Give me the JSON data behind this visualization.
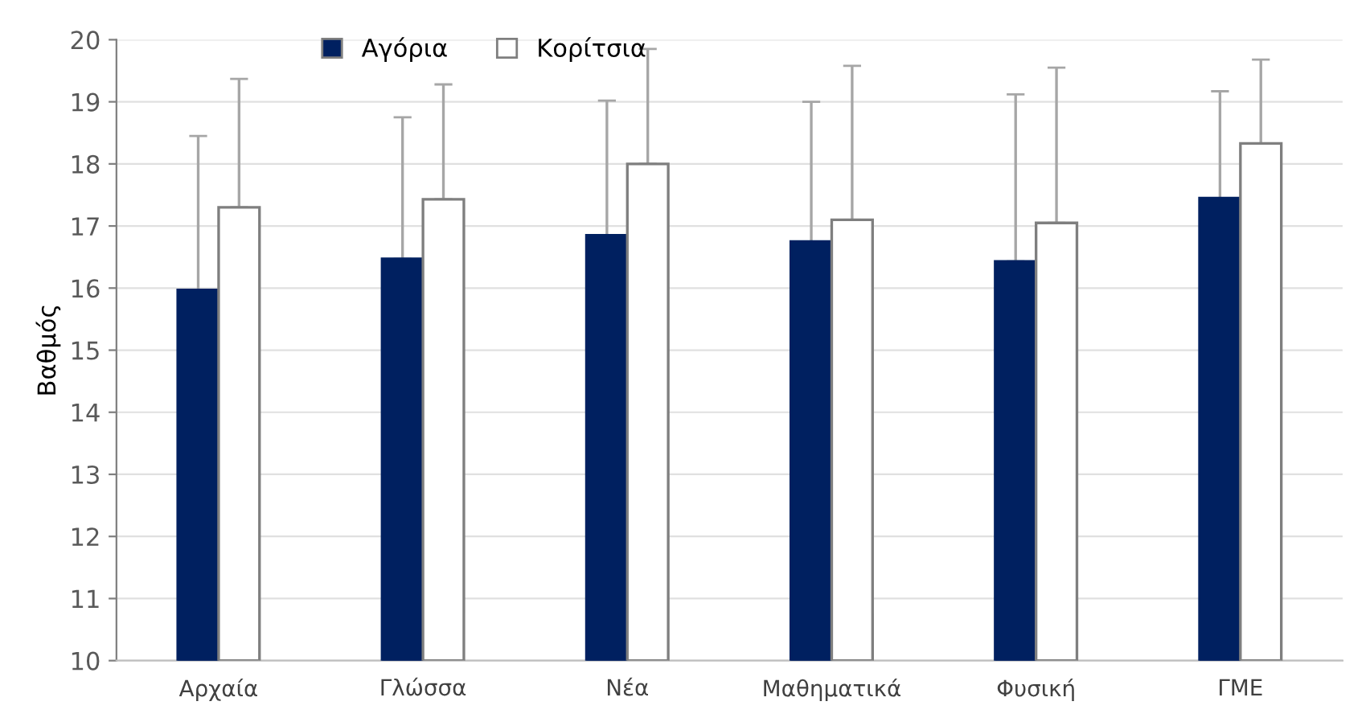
{
  "chart_data": {
    "type": "bar",
    "ylabel": "Βαθμός",
    "categories": [
      "Αρχαία",
      "Γλώσσα",
      "Νέα",
      "Μαθηματικά",
      "Φυσική",
      "ΓΜΕ"
    ],
    "series": [
      {
        "name": "Αγόρια",
        "color": "#002060",
        "values": [
          15.97,
          16.47,
          16.85,
          16.75,
          16.43,
          17.45
        ],
        "errors": [
          [
            15.97,
            18.45
          ],
          [
            16.47,
            18.75
          ],
          [
            16.85,
            19.02
          ],
          [
            16.75,
            19.0
          ],
          [
            16.43,
            19.12
          ],
          [
            17.45,
            19.17
          ]
        ]
      },
      {
        "name": "Κορίτσια",
        "color": "#ffffff",
        "values": [
          17.3,
          17.43,
          18.0,
          17.1,
          17.05,
          18.33
        ],
        "errors": [
          [
            17.3,
            19.37
          ],
          [
            17.43,
            19.28
          ],
          [
            18.0,
            19.85
          ],
          [
            17.1,
            19.58
          ],
          [
            17.05,
            19.55
          ],
          [
            18.33,
            19.68
          ]
        ]
      }
    ],
    "ylim": [
      10,
      20
    ],
    "yticks": [
      10,
      11,
      12,
      13,
      14,
      15,
      16,
      17,
      18,
      19,
      20
    ],
    "grid": "y",
    "legend": "top"
  }
}
